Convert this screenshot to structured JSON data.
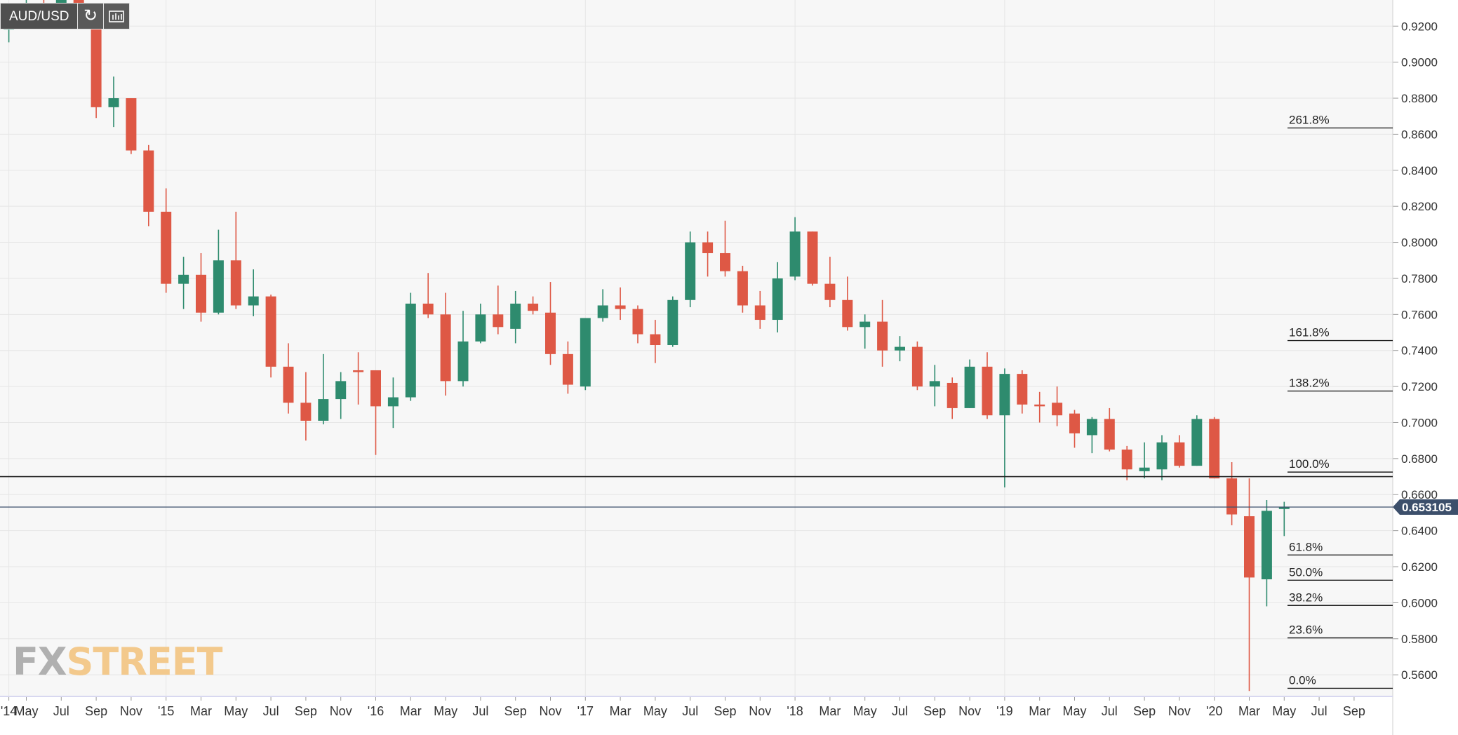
{
  "symbol": "AUD/USD",
  "toolbar": {
    "refresh_icon": "refresh-icon",
    "indicators_icon": "chart-settings-icon"
  },
  "logo": {
    "part1": "FX",
    "part2": "STREET"
  },
  "colors": {
    "bull": "#2e8b6e",
    "bear": "#de5845",
    "price_tag_bg": "#3c4f6b",
    "grid": "#e6e6e6",
    "plot_bg": "#f7f7f7"
  },
  "chart_data": {
    "type": "candlestick",
    "timeframe": "monthly",
    "ylim": [
      0.548,
      0.9345
    ],
    "y_ticks": [
      "0.9200",
      "0.9000",
      "0.8800",
      "0.8600",
      "0.8400",
      "0.8200",
      "0.8000",
      "0.7800",
      "0.7600",
      "0.7400",
      "0.7200",
      "0.7000",
      "0.6800",
      "0.6600",
      "0.6400",
      "0.6200",
      "0.6000",
      "0.5800",
      "0.5600"
    ],
    "x_labels": [
      {
        "i": -6,
        "label": "'14"
      },
      {
        "i": -5,
        "label": "May"
      },
      {
        "i": -3,
        "label": "Jul"
      },
      {
        "i": -1,
        "label": "Sep"
      },
      {
        "i": 1,
        "label": "Nov"
      },
      {
        "i": 3,
        "label": "'15"
      },
      {
        "i": 5,
        "label": "Mar"
      },
      {
        "i": 7,
        "label": "May"
      },
      {
        "i": 9,
        "label": "Jul"
      },
      {
        "i": 11,
        "label": "Sep"
      },
      {
        "i": 13,
        "label": "Nov"
      },
      {
        "i": 15,
        "label": "'16"
      },
      {
        "i": 17,
        "label": "Mar"
      },
      {
        "i": 19,
        "label": "May"
      },
      {
        "i": 21,
        "label": "Jul"
      },
      {
        "i": 23,
        "label": "Sep"
      },
      {
        "i": 25,
        "label": "Nov"
      },
      {
        "i": 27,
        "label": "'17"
      },
      {
        "i": 29,
        "label": "Mar"
      },
      {
        "i": 31,
        "label": "May"
      },
      {
        "i": 33,
        "label": "Jul"
      },
      {
        "i": 35,
        "label": "Sep"
      },
      {
        "i": 37,
        "label": "Nov"
      },
      {
        "i": 39,
        "label": "'18"
      },
      {
        "i": 41,
        "label": "Mar"
      },
      {
        "i": 43,
        "label": "May"
      },
      {
        "i": 45,
        "label": "Jul"
      },
      {
        "i": 47,
        "label": "Sep"
      },
      {
        "i": 49,
        "label": "Nov"
      },
      {
        "i": 51,
        "label": "'19"
      },
      {
        "i": 53,
        "label": "Mar"
      },
      {
        "i": 55,
        "label": "May"
      },
      {
        "i": 57,
        "label": "Jul"
      },
      {
        "i": 59,
        "label": "Sep"
      },
      {
        "i": 61,
        "label": "Nov"
      },
      {
        "i": 63,
        "label": "'20"
      },
      {
        "i": 65,
        "label": "Mar"
      },
      {
        "i": 67,
        "label": "May"
      },
      {
        "i": 69,
        "label": "Jul"
      },
      {
        "i": 71,
        "label": "Sep"
      }
    ],
    "candles": [
      {
        "i": -6,
        "o": 0.918,
        "h": 0.93,
        "l": 0.911,
        "c": 0.927
      },
      {
        "i": -5,
        "o": 0.927,
        "h": 0.935,
        "l": 0.92,
        "c": 0.93
      },
      {
        "i": -4,
        "o": 0.93,
        "h": 0.935,
        "l": 0.922,
        "c": 0.928
      },
      {
        "i": -3,
        "o": 0.928,
        "h": 0.935,
        "l": 0.925,
        "c": 0.935
      },
      {
        "i": -2,
        "o": 0.935,
        "h": 0.935,
        "l": 0.927,
        "c": 0.929
      },
      {
        "i": -1,
        "o": 0.929,
        "h": 0.929,
        "l": 0.869,
        "c": 0.875
      },
      {
        "i": 0,
        "o": 0.875,
        "h": 0.892,
        "l": 0.864,
        "c": 0.88
      },
      {
        "i": 1,
        "o": 0.88,
        "h": 0.88,
        "l": 0.849,
        "c": 0.851
      },
      {
        "i": 2,
        "o": 0.851,
        "h": 0.854,
        "l": 0.809,
        "c": 0.817
      },
      {
        "i": 3,
        "o": 0.817,
        "h": 0.83,
        "l": 0.772,
        "c": 0.777
      },
      {
        "i": 4,
        "o": 0.777,
        "h": 0.792,
        "l": 0.763,
        "c": 0.782
      },
      {
        "i": 5,
        "o": 0.782,
        "h": 0.794,
        "l": 0.756,
        "c": 0.761
      },
      {
        "i": 6,
        "o": 0.761,
        "h": 0.807,
        "l": 0.76,
        "c": 0.79
      },
      {
        "i": 7,
        "o": 0.79,
        "h": 0.817,
        "l": 0.763,
        "c": 0.765
      },
      {
        "i": 8,
        "o": 0.765,
        "h": 0.785,
        "l": 0.759,
        "c": 0.77
      },
      {
        "i": 9,
        "o": 0.77,
        "h": 0.771,
        "l": 0.725,
        "c": 0.731
      },
      {
        "i": 10,
        "o": 0.731,
        "h": 0.744,
        "l": 0.705,
        "c": 0.711
      },
      {
        "i": 11,
        "o": 0.711,
        "h": 0.728,
        "l": 0.69,
        "c": 0.701
      },
      {
        "i": 12,
        "o": 0.701,
        "h": 0.738,
        "l": 0.699,
        "c": 0.713
      },
      {
        "i": 13,
        "o": 0.713,
        "h": 0.728,
        "l": 0.702,
        "c": 0.723
      },
      {
        "i": 14,
        "o": 0.729,
        "h": 0.739,
        "l": 0.71,
        "c": 0.728
      },
      {
        "i": 15,
        "o": 0.729,
        "h": 0.729,
        "l": 0.682,
        "c": 0.709
      },
      {
        "i": 16,
        "o": 0.709,
        "h": 0.725,
        "l": 0.697,
        "c": 0.714
      },
      {
        "i": 17,
        "o": 0.714,
        "h": 0.772,
        "l": 0.712,
        "c": 0.766
      },
      {
        "i": 18,
        "o": 0.766,
        "h": 0.783,
        "l": 0.758,
        "c": 0.76
      },
      {
        "i": 19,
        "o": 0.76,
        "h": 0.772,
        "l": 0.715,
        "c": 0.723
      },
      {
        "i": 20,
        "o": 0.723,
        "h": 0.762,
        "l": 0.72,
        "c": 0.745
      },
      {
        "i": 21,
        "o": 0.745,
        "h": 0.766,
        "l": 0.744,
        "c": 0.76
      },
      {
        "i": 22,
        "o": 0.76,
        "h": 0.776,
        "l": 0.749,
        "c": 0.753
      },
      {
        "i": 23,
        "o": 0.752,
        "h": 0.773,
        "l": 0.744,
        "c": 0.766
      },
      {
        "i": 24,
        "o": 0.766,
        "h": 0.77,
        "l": 0.76,
        "c": 0.762
      },
      {
        "i": 25,
        "o": 0.761,
        "h": 0.778,
        "l": 0.732,
        "c": 0.738
      },
      {
        "i": 26,
        "o": 0.738,
        "h": 0.745,
        "l": 0.716,
        "c": 0.721
      },
      {
        "i": 27,
        "o": 0.72,
        "h": 0.758,
        "l": 0.718,
        "c": 0.758
      },
      {
        "i": 28,
        "o": 0.758,
        "h": 0.774,
        "l": 0.756,
        "c": 0.765
      },
      {
        "i": 29,
        "o": 0.765,
        "h": 0.775,
        "l": 0.757,
        "c": 0.763
      },
      {
        "i": 30,
        "o": 0.763,
        "h": 0.765,
        "l": 0.744,
        "c": 0.749
      },
      {
        "i": 31,
        "o": 0.749,
        "h": 0.757,
        "l": 0.733,
        "c": 0.743
      },
      {
        "i": 32,
        "o": 0.743,
        "h": 0.77,
        "l": 0.742,
        "c": 0.768
      },
      {
        "i": 33,
        "o": 0.768,
        "h": 0.806,
        "l": 0.764,
        "c": 0.8
      },
      {
        "i": 34,
        "o": 0.8,
        "h": 0.806,
        "l": 0.781,
        "c": 0.794
      },
      {
        "i": 35,
        "o": 0.794,
        "h": 0.812,
        "l": 0.781,
        "c": 0.784
      },
      {
        "i": 36,
        "o": 0.784,
        "h": 0.787,
        "l": 0.761,
        "c": 0.765
      },
      {
        "i": 37,
        "o": 0.765,
        "h": 0.773,
        "l": 0.752,
        "c": 0.757
      },
      {
        "i": 38,
        "o": 0.757,
        "h": 0.789,
        "l": 0.75,
        "c": 0.78
      },
      {
        "i": 39,
        "o": 0.781,
        "h": 0.814,
        "l": 0.779,
        "c": 0.806
      },
      {
        "i": 40,
        "o": 0.806,
        "h": 0.806,
        "l": 0.776,
        "c": 0.777
      },
      {
        "i": 41,
        "o": 0.777,
        "h": 0.792,
        "l": 0.764,
        "c": 0.768
      },
      {
        "i": 42,
        "o": 0.768,
        "h": 0.781,
        "l": 0.751,
        "c": 0.753
      },
      {
        "i": 43,
        "o": 0.753,
        "h": 0.76,
        "l": 0.741,
        "c": 0.756
      },
      {
        "i": 44,
        "o": 0.756,
        "h": 0.768,
        "l": 0.731,
        "c": 0.74
      },
      {
        "i": 45,
        "o": 0.74,
        "h": 0.748,
        "l": 0.734,
        "c": 0.742
      },
      {
        "i": 46,
        "o": 0.742,
        "h": 0.745,
        "l": 0.718,
        "c": 0.72
      },
      {
        "i": 47,
        "o": 0.72,
        "h": 0.732,
        "l": 0.709,
        "c": 0.723
      },
      {
        "i": 48,
        "o": 0.722,
        "h": 0.725,
        "l": 0.702,
        "c": 0.708
      },
      {
        "i": 49,
        "o": 0.708,
        "h": 0.735,
        "l": 0.708,
        "c": 0.731
      },
      {
        "i": 50,
        "o": 0.731,
        "h": 0.739,
        "l": 0.702,
        "c": 0.704
      },
      {
        "i": 51,
        "o": 0.704,
        "h": 0.73,
        "l": 0.664,
        "c": 0.727
      },
      {
        "i": 52,
        "o": 0.727,
        "h": 0.729,
        "l": 0.705,
        "c": 0.71
      },
      {
        "i": 53,
        "o": 0.71,
        "h": 0.717,
        "l": 0.7,
        "c": 0.709
      },
      {
        "i": 54,
        "o": 0.711,
        "h": 0.72,
        "l": 0.698,
        "c": 0.704
      },
      {
        "i": 55,
        "o": 0.705,
        "h": 0.707,
        "l": 0.686,
        "c": 0.694
      },
      {
        "i": 56,
        "o": 0.693,
        "h": 0.703,
        "l": 0.683,
        "c": 0.702
      },
      {
        "i": 57,
        "o": 0.702,
        "h": 0.708,
        "l": 0.684,
        "c": 0.685
      },
      {
        "i": 58,
        "o": 0.685,
        "h": 0.687,
        "l": 0.668,
        "c": 0.674
      },
      {
        "i": 59,
        "o": 0.673,
        "h": 0.689,
        "l": 0.669,
        "c": 0.675
      },
      {
        "i": 60,
        "o": 0.674,
        "h": 0.693,
        "l": 0.668,
        "c": 0.689
      },
      {
        "i": 61,
        "o": 0.689,
        "h": 0.693,
        "l": 0.675,
        "c": 0.676
      },
      {
        "i": 62,
        "o": 0.676,
        "h": 0.704,
        "l": 0.676,
        "c": 0.702
      },
      {
        "i": 63,
        "o": 0.702,
        "h": 0.703,
        "l": 0.669,
        "c": 0.669
      },
      {
        "i": 64,
        "o": 0.669,
        "h": 0.678,
        "l": 0.643,
        "c": 0.649
      },
      {
        "i": 65,
        "o": 0.648,
        "h": 0.669,
        "l": 0.551,
        "c": 0.614
      },
      {
        "i": 66,
        "o": 0.613,
        "h": 0.657,
        "l": 0.598,
        "c": 0.651
      },
      {
        "i": 67,
        "o": 0.652,
        "h": 0.656,
        "l": 0.637,
        "c": 0.653
      }
    ],
    "hlines": [
      {
        "y": 0.67,
        "color": "#222222"
      },
      {
        "y": 0.653105,
        "color": "#3c4f6b"
      }
    ],
    "current_price": "0.653105",
    "fib_levels": [
      {
        "label": "261.8%",
        "y": 0.8635
      },
      {
        "label": "161.8%",
        "y": 0.7455
      },
      {
        "label": "138.2%",
        "y": 0.7175
      },
      {
        "label": "100.0%",
        "y": 0.6725
      },
      {
        "label": "61.8%",
        "y": 0.6265
      },
      {
        "label": "50.0%",
        "y": 0.6125
      },
      {
        "label": "38.2%",
        "y": 0.5985
      },
      {
        "label": "23.6%",
        "y": 0.5805
      },
      {
        "label": "0.0%",
        "y": 0.5525
      }
    ]
  }
}
